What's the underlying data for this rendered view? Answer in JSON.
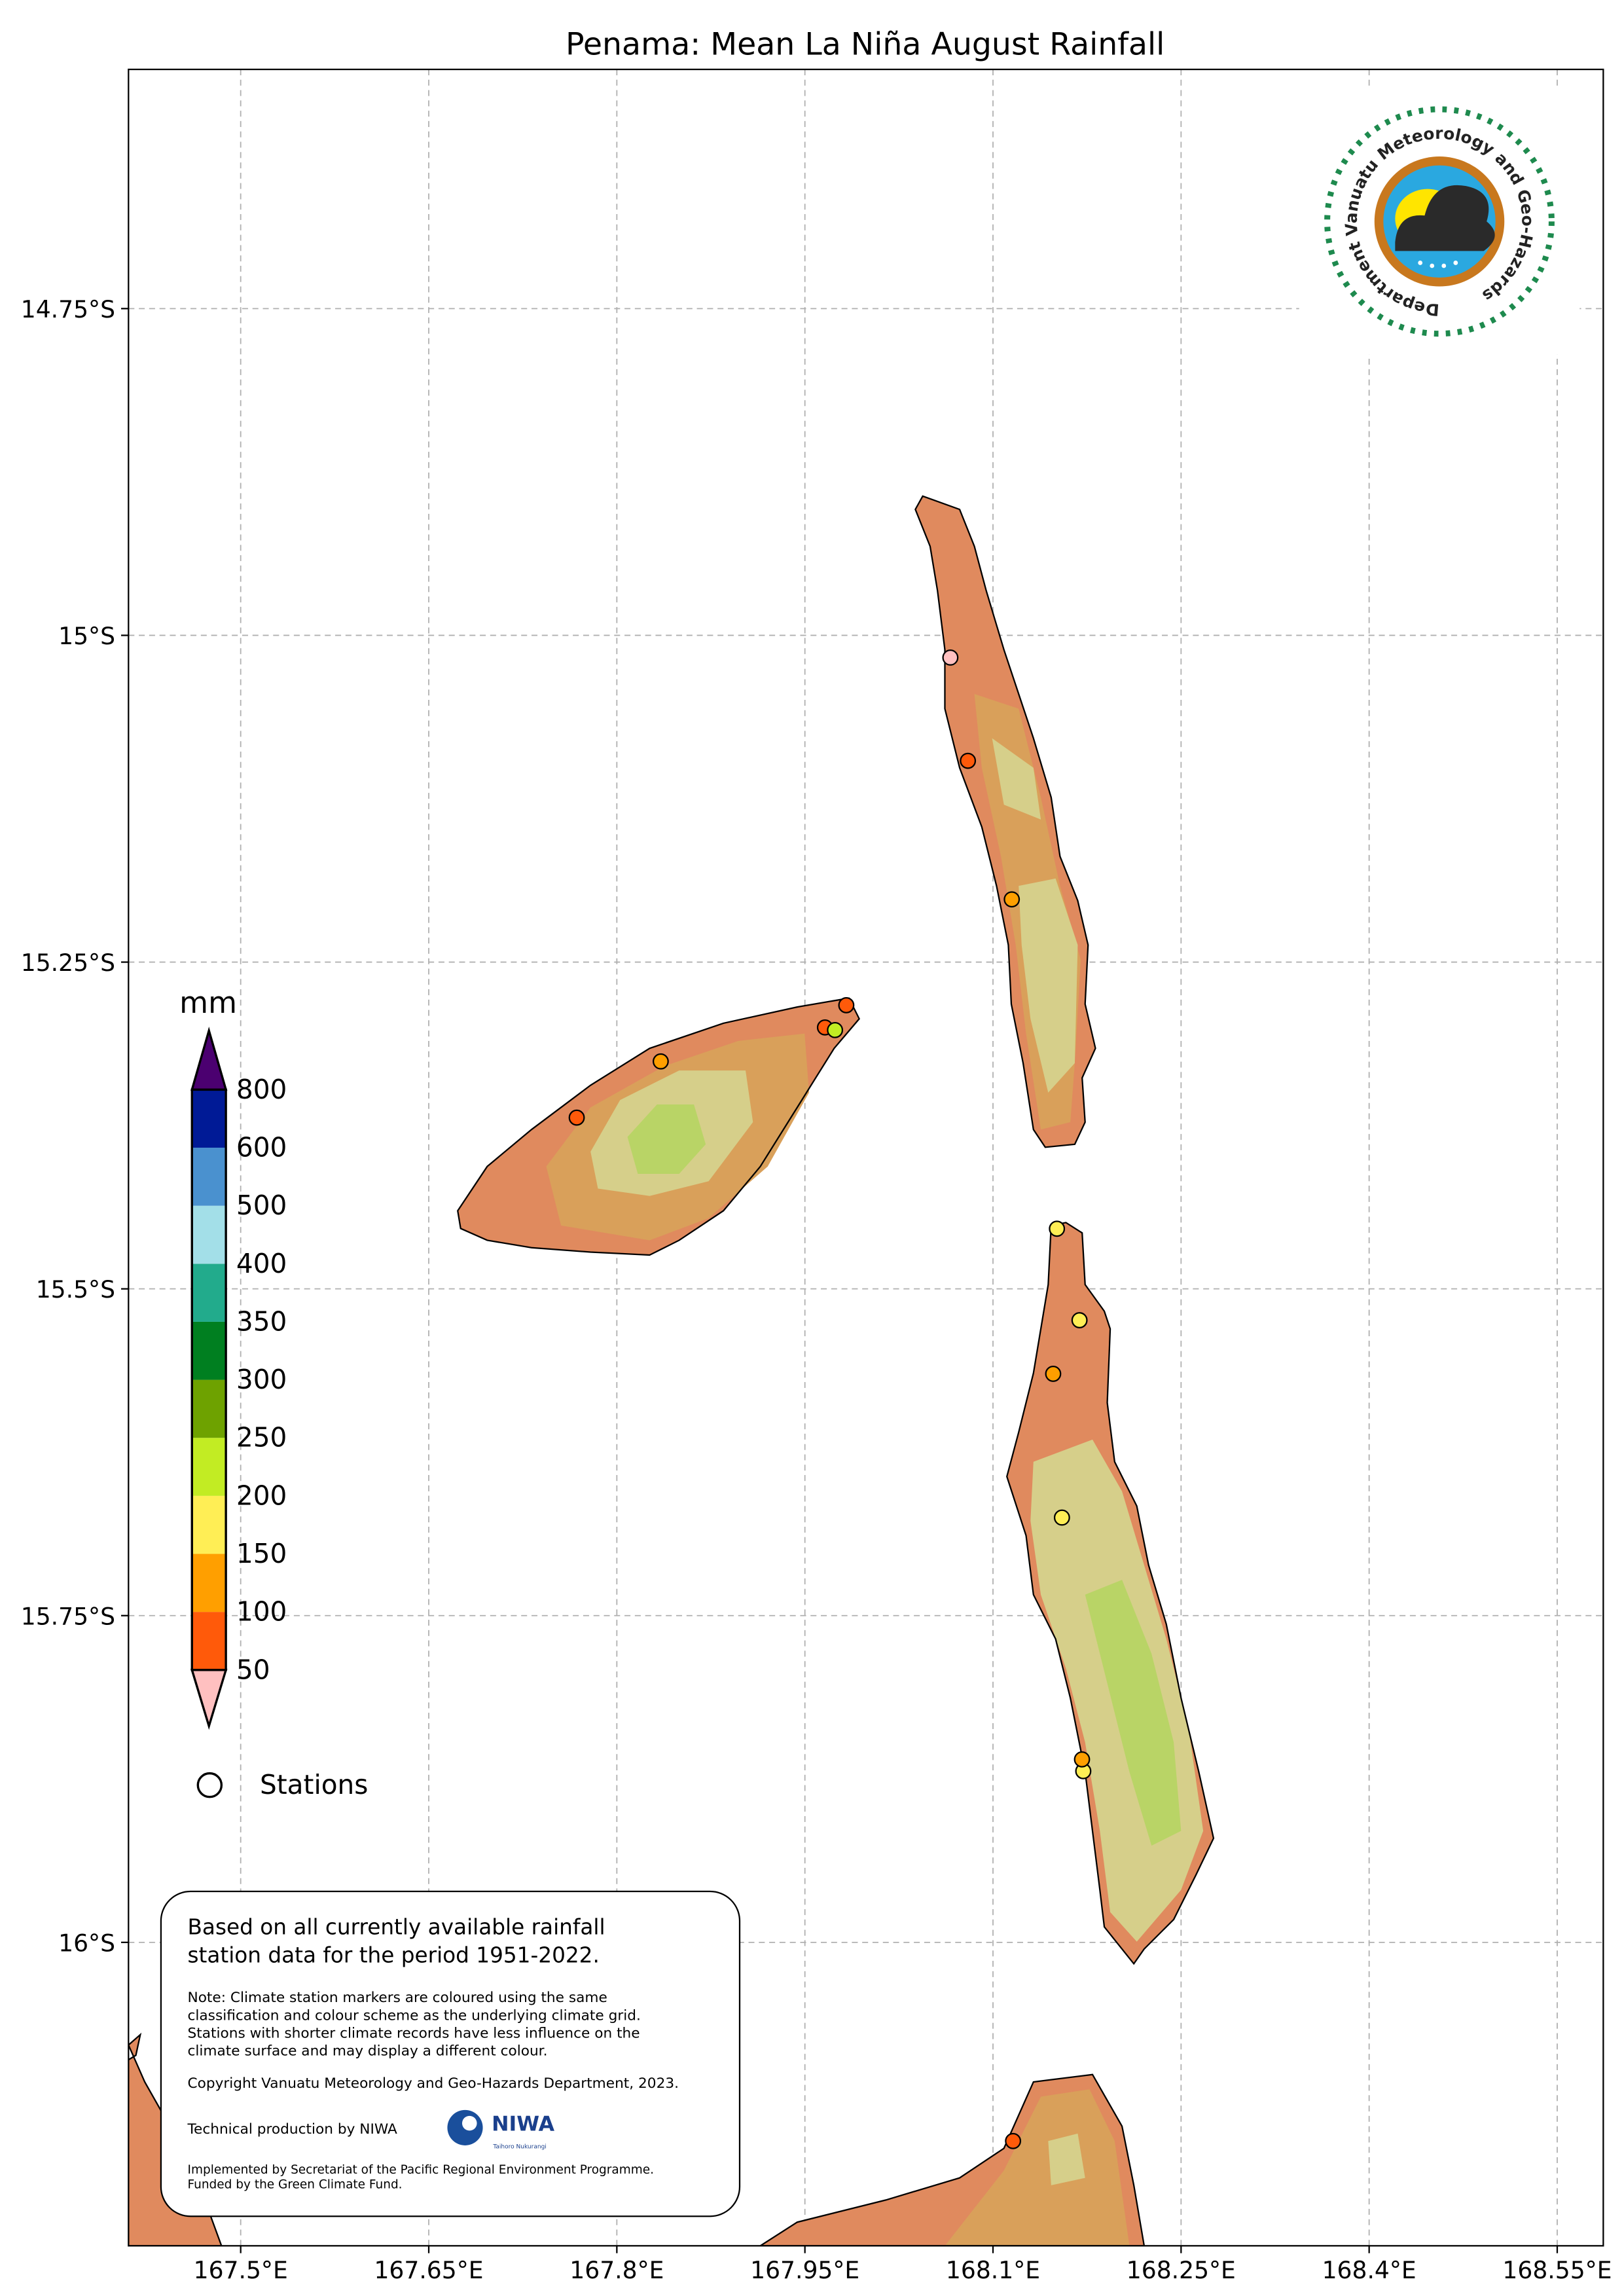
{
  "title": "Penama: Mean La Niña August Rainfall",
  "axes": {
    "x_ticks": [
      "167.5°E",
      "167.65°E",
      "167.8°E",
      "167.95°E",
      "168.1°E",
      "168.25°E",
      "168.4°E",
      "168.55°E"
    ],
    "x_tick_values": [
      167.5,
      167.65,
      167.8,
      167.95,
      168.1,
      168.25,
      168.4,
      168.55
    ],
    "y_ticks": [
      "14.75°S",
      "15°S",
      "15.25°S",
      "15.5°S",
      "15.75°S",
      "16°S"
    ],
    "y_tick_values": [
      14.75,
      15.0,
      15.25,
      15.5,
      15.75,
      16.0
    ],
    "grid": true
  },
  "legend": {
    "unit": "mm",
    "labels": [
      "50",
      "100",
      "150",
      "200",
      "250",
      "300",
      "350",
      "400",
      "500",
      "600",
      "800"
    ],
    "colors": [
      "#ff5a0a",
      "#ff9f00",
      "#ffee55",
      "#c2ec23",
      "#6ea200",
      "#007f20",
      "#22ab8c",
      "#a3dfe8",
      "#4a91cf",
      "#001a96"
    ],
    "under_color": "#ffc0c0",
    "over_color": "#4b0070",
    "stations_label": "Stations"
  },
  "stations": [
    {
      "lon": 168.066,
      "lat": 15.017,
      "color": "#ffc0c0"
    },
    {
      "lon": 168.08,
      "lat": 15.096,
      "color": "#ff5a0a"
    },
    {
      "lon": 168.115,
      "lat": 15.202,
      "color": "#ff9f00"
    },
    {
      "lon": 167.983,
      "lat": 15.283,
      "color": "#ff5a0a"
    },
    {
      "lon": 167.966,
      "lat": 15.3,
      "color": "#ff5a0a"
    },
    {
      "lon": 167.974,
      "lat": 15.302,
      "color": "#c2ec23"
    },
    {
      "lon": 167.835,
      "lat": 15.326,
      "color": "#ff9f00"
    },
    {
      "lon": 167.768,
      "lat": 15.369,
      "color": "#ff5a0a"
    },
    {
      "lon": 168.151,
      "lat": 15.454,
      "color": "#ffee55"
    },
    {
      "lon": 168.169,
      "lat": 15.524,
      "color": "#ffee55"
    },
    {
      "lon": 168.148,
      "lat": 15.565,
      "color": "#ff9f00"
    },
    {
      "lon": 168.155,
      "lat": 15.675,
      "color": "#ffee55"
    },
    {
      "lon": 168.172,
      "lat": 15.869,
      "color": "#ffee55"
    },
    {
      "lon": 168.171,
      "lat": 15.86,
      "color": "#ff9f00"
    },
    {
      "lon": 168.116,
      "lat": 16.152,
      "color": "#ff5a0a"
    }
  ],
  "info_box": {
    "headline_1": "Based on all currently available rainfall",
    "headline_2": "station data for the period 1951-2022.",
    "note_1": "Note: Climate station markers are coloured using the same",
    "note_2": "classification and colour scheme as the underlying climate grid.",
    "note_3": "Stations with shorter climate records have less influence on the",
    "note_4": "climate surface and may display a different colour.",
    "copyright": "Copyright Vanuatu Meteorology and Geo-Hazards Department, 2023.",
    "technical": "Technical production by NIWA",
    "niwa_logo": "NIWA",
    "niwa_tagline": "Taihoro Nukurangi",
    "implemented_1": "Implemented by Secretariat of the Pacific Regional Environment Programme.",
    "implemented_2": "Funded by the Green Climate Fund."
  },
  "logo": {
    "text": "Department Vanuatu Meteorology and Geo-Hazards"
  },
  "colors": {
    "land_low": "#e08a5e",
    "land_mid": "#d9a05a",
    "land_light": "#d6cf8a",
    "land_green": "#b9d466",
    "land_edge": "#d9b3b3"
  }
}
